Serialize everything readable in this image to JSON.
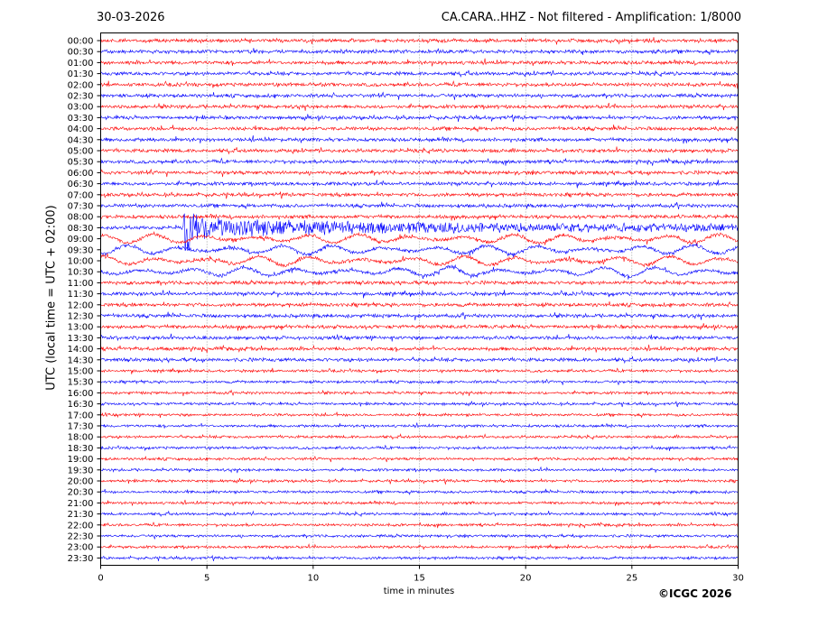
{
  "header": {
    "date": "30-03-2026",
    "title": "CA.CARA..HHZ - Not filtered - Amplification: 1/8000"
  },
  "footer": {
    "copyright": "©ICGC 2026"
  },
  "colors": {
    "trace_a": "#ff0000",
    "trace_b": "#0000ff",
    "grid": "#666666",
    "axis": "#000000"
  },
  "chart_data": {
    "type": "line",
    "chart_kind": "helicorder",
    "xlabel": "time in minutes",
    "ylabel": "UTC (local time = UTC + 02:00)",
    "xlim": [
      0,
      30
    ],
    "x_ticks": [
      "0",
      "5",
      "10",
      "15",
      "20",
      "25",
      "30"
    ],
    "vertical_gridlines_at_minutes": [
      5,
      10,
      15,
      20,
      25
    ],
    "row_labels": [
      "00:00",
      "00:30",
      "01:00",
      "01:30",
      "02:00",
      "02:30",
      "03:00",
      "03:30",
      "04:00",
      "04:30",
      "05:00",
      "05:30",
      "06:00",
      "06:30",
      "07:00",
      "07:30",
      "08:00",
      "08:30",
      "09:00",
      "09:30",
      "10:00",
      "10:30",
      "11:00",
      "11:30",
      "12:00",
      "12:30",
      "13:00",
      "13:30",
      "14:00",
      "14:30",
      "15:00",
      "15:30",
      "16:00",
      "16:30",
      "17:00",
      "17:30",
      "18:00",
      "18:30",
      "19:00",
      "19:30",
      "20:00",
      "20:30",
      "21:00",
      "21:30",
      "22:00",
      "22:30",
      "23:00",
      "23:30"
    ],
    "row_colors": [
      "red",
      "blue"
    ],
    "event": {
      "row": "08:30",
      "onset_minute": 3.9,
      "coda_end_minute": 8.6
    },
    "high_noise_rows": [
      "09:00",
      "09:30",
      "10:00",
      "10:30"
    ]
  }
}
